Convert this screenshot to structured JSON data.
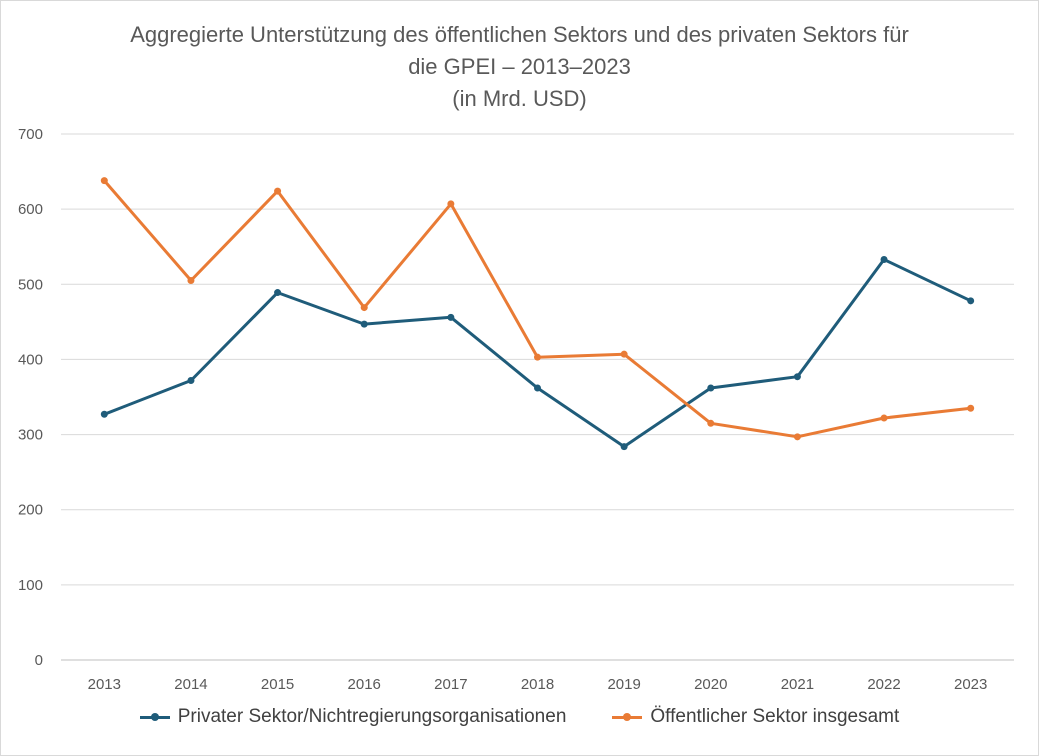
{
  "chart_data": {
    "type": "line",
    "title_lines": [
      "Aggregierte Unterstützung des öffentlichen Sektors und des privaten Sektors für",
      "die GPEI – 2013–2023",
      "(in Mrd. USD)"
    ],
    "categories": [
      "2013",
      "2014",
      "2015",
      "2016",
      "2017",
      "2018",
      "2019",
      "2020",
      "2021",
      "2022",
      "2023"
    ],
    "y_ticks": [
      "0",
      "100",
      "200",
      "300",
      "400",
      "500",
      "600",
      "700"
    ],
    "ylim": [
      0,
      700
    ],
    "grid": true,
    "legend_position": "bottom",
    "series": [
      {
        "name": "Privater Sektor/Nichtregierungsorganisationen",
        "color": "#1f5c7a",
        "values": [
          327,
          372,
          489,
          447,
          456,
          362,
          284,
          362,
          377,
          533,
          478
        ]
      },
      {
        "name": "Öffentlicher Sektor insgesamt",
        "color": "#e97b35",
        "values": [
          638,
          505,
          624,
          469,
          607,
          403,
          407,
          315,
          297,
          322,
          335
        ]
      }
    ]
  }
}
